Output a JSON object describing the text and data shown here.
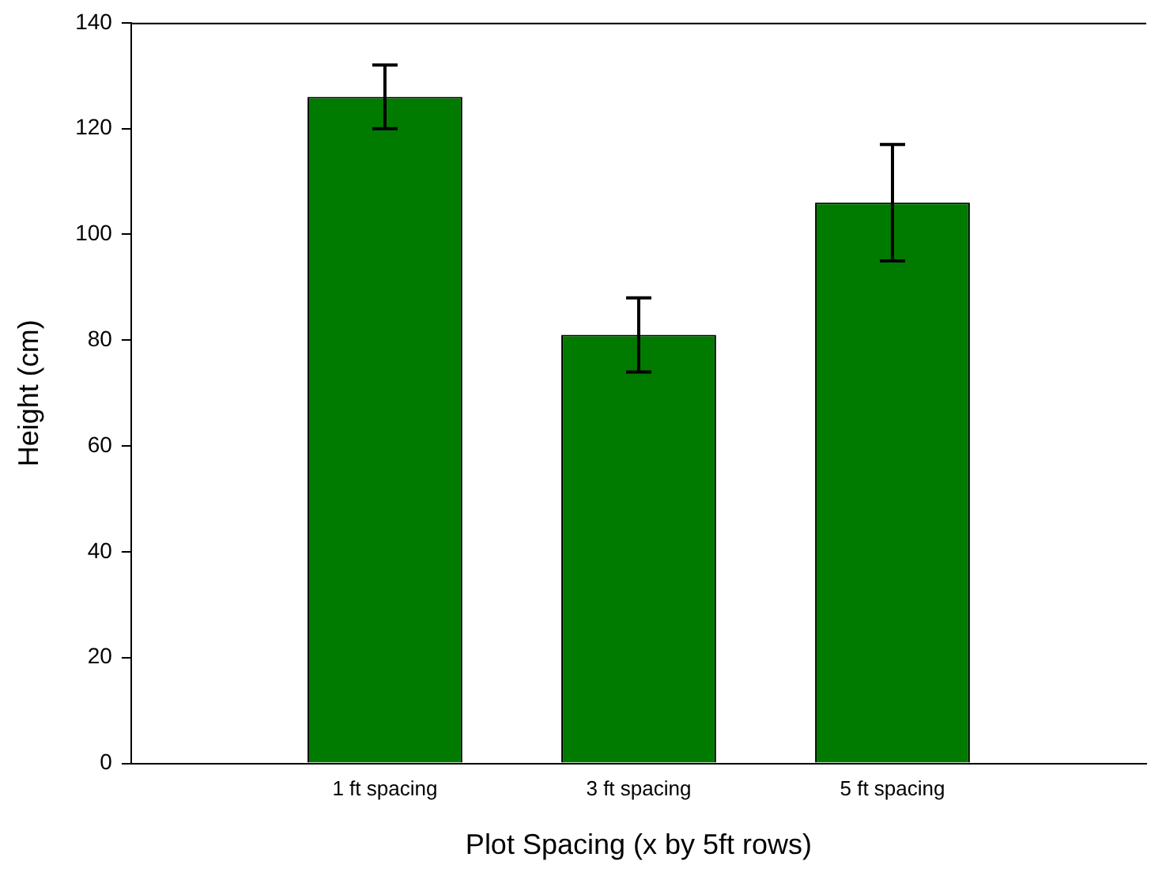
{
  "chart_data": {
    "type": "bar",
    "xlabel": "Plot Spacing (x by 5ft rows)",
    "ylabel": "Height (cm)",
    "categories": [
      "1 ft spacing",
      "3 ft spacing",
      "5 ft spacing"
    ],
    "values": [
      126,
      81,
      106
    ],
    "errors": [
      6,
      7,
      11
    ],
    "color": "#007b00",
    "ylim": [
      0,
      140
    ],
    "yticks": [
      0,
      20,
      40,
      60,
      80,
      100,
      120,
      140
    ],
    "grid": false,
    "legend": false
  }
}
